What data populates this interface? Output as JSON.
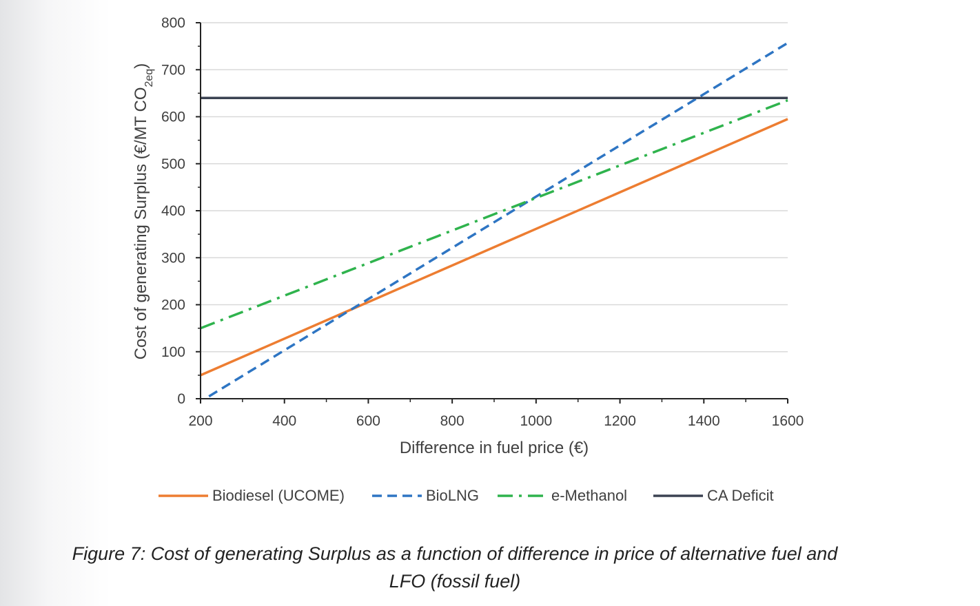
{
  "figure": {
    "caption_line1": "Figure 7: Cost of generating Surplus as a function of difference in price of alternative fuel and",
    "caption_line2": "LFO (fossil fuel)"
  },
  "chart_data": {
    "type": "line",
    "xlabel": "Difference in fuel price (€)",
    "ylabel_main": "Cost of generating Surplus (€/MT CO",
    "ylabel_sub": "2eq",
    "ylabel_close": ")",
    "xlim": [
      200,
      1600
    ],
    "ylim": [
      0,
      800
    ],
    "xticks": [
      200,
      400,
      600,
      800,
      1000,
      1200,
      1400,
      1600
    ],
    "yticks": [
      0,
      100,
      200,
      300,
      400,
      500,
      600,
      700,
      800
    ],
    "grid": "horizontal",
    "legend_position": "bottom",
    "series": [
      {
        "name": "Biodiesel (UCOME)",
        "style": "solid",
        "color": "#ed7d31",
        "x": [
          200,
          1600
        ],
        "y": [
          50,
          595
        ]
      },
      {
        "name": "BioLNG",
        "style": "dashed",
        "color": "#2e75c3",
        "x": [
          220,
          1600
        ],
        "y": [
          5,
          757
        ]
      },
      {
        "name": "e-Methanol",
        "style": "dashdot",
        "color": "#2fb34d",
        "x": [
          200,
          1600
        ],
        "y": [
          150,
          635
        ]
      },
      {
        "name": "CA Deficit",
        "style": "solid",
        "color": "#3b4252",
        "x": [
          200,
          1600
        ],
        "y": [
          640,
          640
        ]
      }
    ]
  }
}
